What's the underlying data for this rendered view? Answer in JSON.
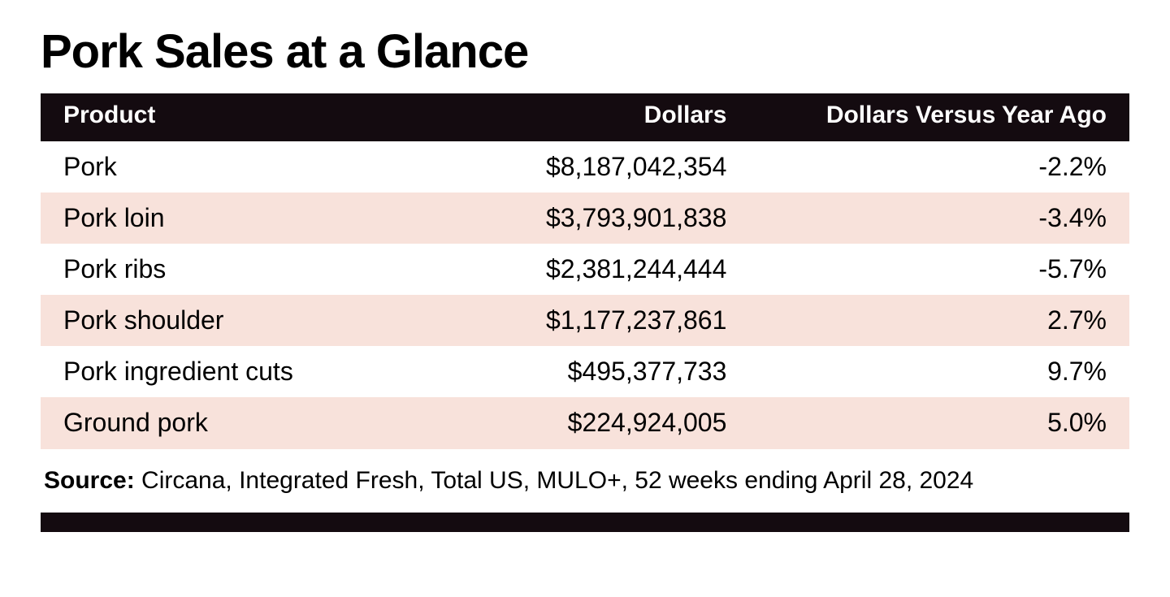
{
  "title": "Pork Sales at a Glance",
  "table": {
    "type": "table",
    "header_bg": "#140b10",
    "header_fg": "#ffffff",
    "row_alt_bg": "#f8e2db",
    "row_bg": "#ffffff",
    "text_color": "#000000",
    "header_fontsize_pt": 22,
    "body_fontsize_pt": 24,
    "columns": [
      {
        "key": "product",
        "label": "Product",
        "align": "left",
        "width_pct": 34
      },
      {
        "key": "dollars",
        "label": "Dollars",
        "align": "right",
        "width_pct": 32
      },
      {
        "key": "change",
        "label": "Dollars Versus Year Ago",
        "align": "right",
        "width_pct": 34
      }
    ],
    "rows": [
      {
        "product": "Pork",
        "dollars": "$8,187,042,354",
        "change": "-2.2%"
      },
      {
        "product": "Pork loin",
        "dollars": "$3,793,901,838",
        "change": "-3.4%"
      },
      {
        "product": "Pork ribs",
        "dollars": "$2,381,244,444",
        "change": "-5.7%"
      },
      {
        "product": "Pork shoulder",
        "dollars": "$1,177,237,861",
        "change": "2.7%"
      },
      {
        "product": "Pork ingredient cuts",
        "dollars": "$495,377,733",
        "change": "9.7%"
      },
      {
        "product": "Ground pork",
        "dollars": "$224,924,005",
        "change": "5.0%"
      }
    ]
  },
  "source": {
    "label": "Source:",
    "text": "Circana, Integrated Fresh, Total US, MULO+, 52 weeks ending April 28, 2024"
  },
  "footer_bar_color": "#140b10"
}
